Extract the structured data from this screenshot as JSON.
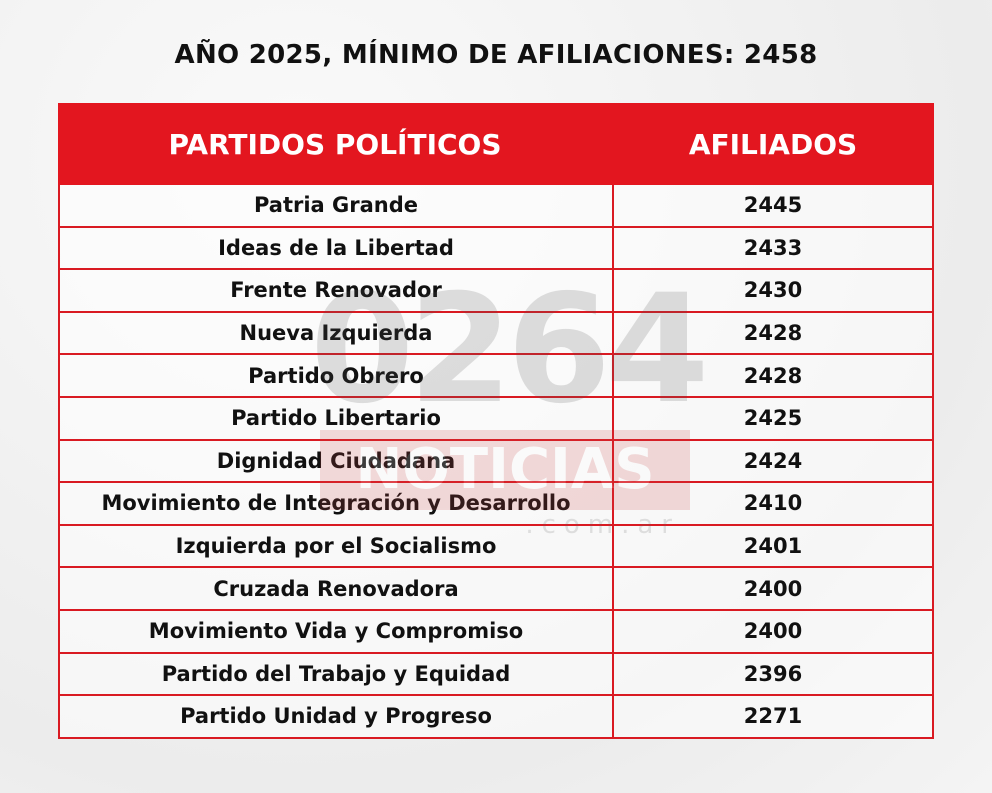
{
  "title": "AÑO 2025, MÍNIMO DE AFILIACIONES: 2458",
  "watermark": {
    "number": "0264",
    "word": "NOTICIAS",
    "domain": ".com.ar"
  },
  "colors": {
    "header": "#e3161f",
    "border": "#d91a22"
  },
  "chart_data": {
    "type": "table",
    "title": "AÑO 2025, MÍNIMO DE AFILIACIONES: 2458",
    "columns": [
      "PARTIDOS POLÍTICOS",
      "AFILIADOS"
    ],
    "rows": [
      [
        "Patria Grande",
        "2445"
      ],
      [
        "Ideas de la Libertad",
        "2433"
      ],
      [
        "Frente Renovador",
        "2430"
      ],
      [
        "Nueva Izquierda",
        "2428"
      ],
      [
        "Partido Obrero",
        "2428"
      ],
      [
        "Partido Libertario",
        "2425"
      ],
      [
        "Dignidad Ciudadana",
        "2424"
      ],
      [
        "Movimiento de Integración y Desarrollo",
        "2410"
      ],
      [
        "Izquierda por el Socialismo",
        "2401"
      ],
      [
        "Cruzada Renovadora",
        "2400"
      ],
      [
        "Movimiento Vida y Compromiso",
        "2400"
      ],
      [
        "Partido del Trabajo y Equidad",
        "2396"
      ],
      [
        "Partido Unidad y Progreso",
        "2271"
      ]
    ]
  }
}
